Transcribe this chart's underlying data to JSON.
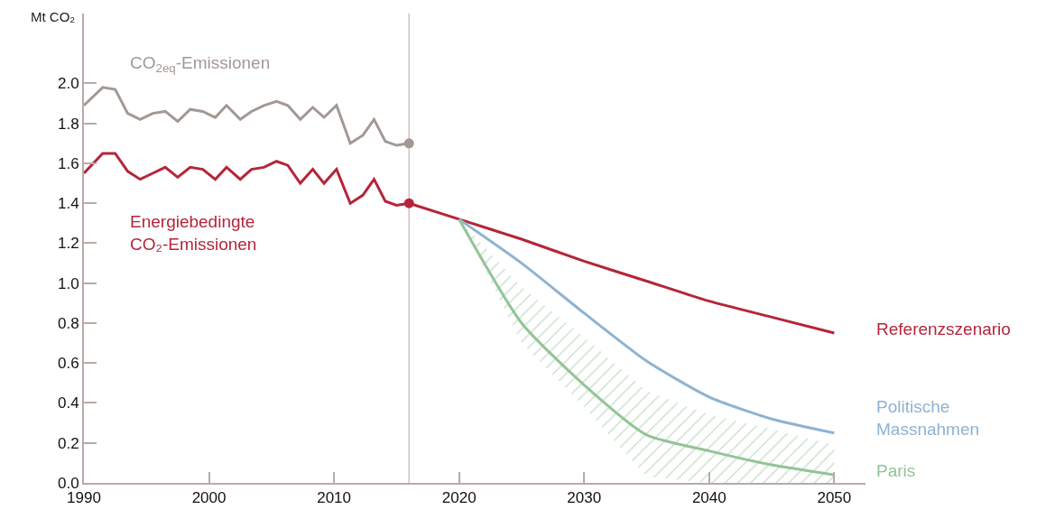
{
  "chart_data": {
    "type": "line",
    "ylabel": "Mt CO₂",
    "xlim": [
      1990,
      2052.5
    ],
    "xticks": [
      1990,
      2000,
      2010,
      2020,
      2030,
      2040,
      2050
    ],
    "ylim": [
      0,
      2.35
    ],
    "yticks": [
      {
        "value": 0,
        "label": "0.0"
      },
      {
        "value": 0.2,
        "label": "0.2"
      },
      {
        "value": 0.4,
        "label": "0.4"
      },
      {
        "value": 0.6,
        "label": "0.6"
      },
      {
        "value": 0.8,
        "label": "0.8"
      },
      {
        "value": 1,
        "label": "1.0"
      },
      {
        "value": 1.2,
        "label": "1.2"
      },
      {
        "value": 1.4,
        "label": "1.4"
      },
      {
        "value": 1.6,
        "label": "1.6"
      },
      {
        "value": 1.8,
        "label": "1.8"
      },
      {
        "value": 2,
        "label": "2.0"
      }
    ],
    "grid": false,
    "legend": false,
    "ref_lines": [
      {
        "axis": "x",
        "value": 2016,
        "color": "#cfc3c1"
      }
    ],
    "series": [
      {
        "name": "CO$_{2eq}$-Emissionen",
        "color": "#a39893",
        "x": [
          1990,
          1991.5,
          1992.5,
          1993.5,
          1994.5,
          1995.5,
          1996.5,
          1997.5,
          1998.5,
          1999.5,
          2000.5,
          2001.4,
          2002.5,
          2003.4,
          2004.4,
          2005.4,
          2006.3,
          2007.3,
          2008.3,
          2009.2,
          2010.2,
          2011.3,
          2012.3,
          2013.2,
          2014.1,
          2015,
          2016
        ],
        "values": [
          1.89,
          1.98,
          1.97,
          1.85,
          1.82,
          1.85,
          1.86,
          1.81,
          1.87,
          1.86,
          1.83,
          1.89,
          1.82,
          1.86,
          1.89,
          1.91,
          1.89,
          1.82,
          1.88,
          1.83,
          1.89,
          1.7,
          1.74,
          1.82,
          1.71,
          1.69,
          1.7
        ]
      },
      {
        "name": "Energiebedingte\nCO₂-Emissionen",
        "color": "#b5253a",
        "x": [
          1990,
          1991.5,
          1992.5,
          1993.5,
          1994.5,
          1995.5,
          1996.5,
          1997.5,
          1998.5,
          1999.5,
          2000.5,
          2001.4,
          2002.5,
          2003.4,
          2004.4,
          2005.4,
          2006.3,
          2007.3,
          2008.3,
          2009.2,
          2010.2,
          2011.3,
          2012.3,
          2013.2,
          2014.1,
          2015,
          2016
        ],
        "values": [
          1.55,
          1.65,
          1.65,
          1.56,
          1.52,
          1.55,
          1.58,
          1.53,
          1.58,
          1.57,
          1.52,
          1.58,
          1.52,
          1.57,
          1.58,
          1.61,
          1.59,
          1.5,
          1.57,
          1.5,
          1.57,
          1.4,
          1.44,
          1.52,
          1.41,
          1.39,
          1.4
        ]
      },
      {
        "name": "Referenzszenario",
        "color": "#b5253a",
        "x": [
          2016,
          2020,
          2025,
          2030,
          2035,
          2040,
          2045,
          2050
        ],
        "values": [
          1.4,
          1.32,
          1.22,
          1.11,
          1.01,
          0.91,
          0.83,
          0.75
        ]
      },
      {
        "name": "Politische\nMassnahmen",
        "color": "#8fb3d1",
        "x": [
          2020,
          2025,
          2030,
          2035,
          2040,
          2045,
          2050
        ],
        "values": [
          1.32,
          1.1,
          0.85,
          0.61,
          0.43,
          0.32,
          0.25
        ]
      },
      {
        "name": "Paris",
        "color": "#93c497",
        "x": [
          2020,
          2025,
          2030,
          2035,
          2040,
          2045,
          2050
        ],
        "values": [
          1.32,
          0.8,
          0.49,
          0.24,
          0.16,
          0.09,
          0.04
        ],
        "lower": [
          1.32,
          0.7,
          0.38,
          0.03,
          0,
          0,
          0
        ],
        "upper": [
          1.32,
          0.98,
          0.73,
          0.46,
          0.34,
          0.27,
          0.19
        ]
      },
      {
        "type": "scatter",
        "color": "#a39893",
        "x": [
          2016
        ],
        "values": [
          1.7
        ]
      },
      {
        "type": "scatter",
        "color": "#b5253a",
        "x": [
          2016
        ],
        "values": [
          1.4
        ]
      }
    ]
  }
}
